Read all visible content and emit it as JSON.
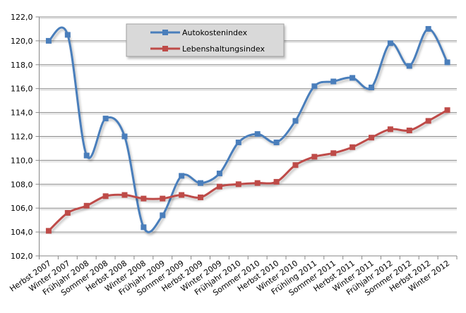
{
  "chart_data": {
    "type": "line",
    "title": "",
    "xlabel": "",
    "ylabel": "",
    "ylim": [
      102,
      122
    ],
    "yticks": [
      "102,0",
      "104,0",
      "106,0",
      "108,0",
      "110,0",
      "112,0",
      "114,0",
      "116,0",
      "118,0",
      "120,0",
      "122,0"
    ],
    "grid": true,
    "smooth": true,
    "legend_position": "top-center",
    "categories": [
      "Herbst 2007",
      "Winter 2007",
      "Frühjahr 2008",
      "Sommer 2008",
      "Herbst 2008",
      "Winter 2008",
      "Frühjahr 2009",
      "Sommer 2009",
      "Herbst 2009",
      "Winter 2009",
      "Frühjahr 2010",
      "Sommer 2010",
      "Herbst 2010",
      "Winter 2010",
      "Frühling 2011",
      "Sommer 2011",
      "Herbst 2011",
      "Winter 2011",
      "Frühjahr 2012",
      "Sommer 2012",
      "Herbst 2012",
      "Winter 2012"
    ],
    "series": [
      {
        "name": "Autokostenindex",
        "color": "#4a7ebb",
        "values": [
          120.0,
          120.5,
          110.4,
          113.5,
          112.0,
          104.4,
          105.4,
          108.7,
          108.1,
          108.9,
          111.5,
          112.2,
          111.5,
          113.3,
          116.2,
          116.6,
          116.9,
          116.1,
          119.8,
          117.9,
          121.0,
          118.2
        ]
      },
      {
        "name": "Lebenshaltungsindex",
        "color": "#be4b48",
        "values": [
          104.1,
          105.6,
          106.2,
          107.0,
          107.1,
          106.8,
          106.8,
          107.1,
          106.9,
          107.8,
          108.0,
          108.1,
          108.2,
          109.6,
          110.3,
          110.6,
          111.1,
          111.9,
          112.6,
          112.5,
          113.3,
          114.2
        ]
      }
    ]
  }
}
